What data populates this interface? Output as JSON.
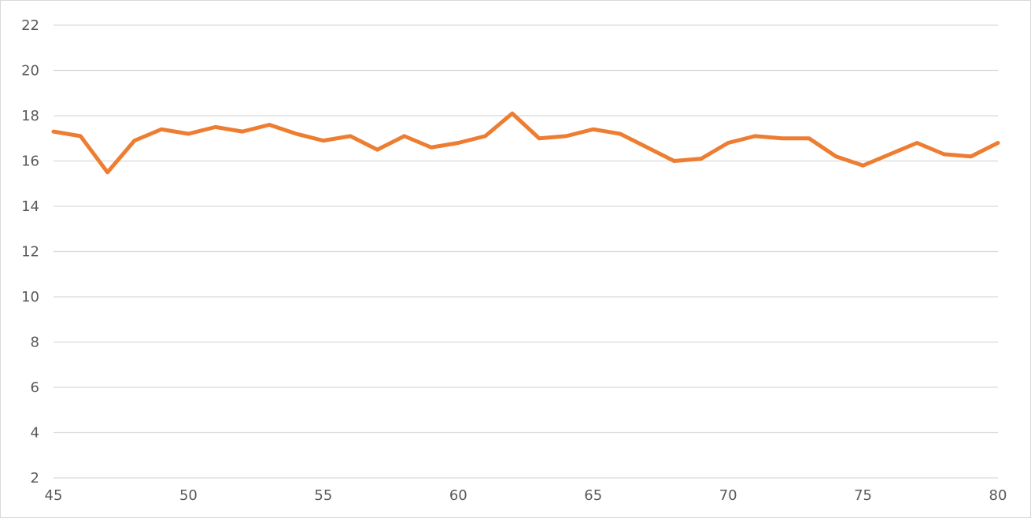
{
  "chart_data": {
    "type": "line",
    "title": "",
    "xlabel": "",
    "ylabel": "",
    "xlim": [
      45,
      80
    ],
    "ylim": [
      2,
      22
    ],
    "x_ticks": [
      45,
      50,
      55,
      60,
      65,
      70,
      75,
      80
    ],
    "y_ticks": [
      2,
      4,
      6,
      8,
      10,
      12,
      14,
      16,
      18,
      20,
      22
    ],
    "grid": "horizontal",
    "legend": "none",
    "series": [
      {
        "color": "#ED7D31",
        "x": [
          45,
          46,
          47,
          48,
          49,
          50,
          51,
          52,
          53,
          54,
          55,
          56,
          57,
          58,
          59,
          60,
          61,
          62,
          63,
          64,
          65,
          66,
          67,
          68,
          69,
          70,
          71,
          72,
          73,
          74,
          75,
          76,
          77,
          78,
          79,
          80
        ],
        "y": [
          17.3,
          17.1,
          15.5,
          16.9,
          17.4,
          17.2,
          17.5,
          17.3,
          17.6,
          17.2,
          16.9,
          17.1,
          16.5,
          17.1,
          16.6,
          16.8,
          17.1,
          18.1,
          17.0,
          17.1,
          17.4,
          17.2,
          16.6,
          16.0,
          16.1,
          16.8,
          17.1,
          17.0,
          17.0,
          16.2,
          15.8,
          16.3,
          16.8,
          16.3,
          16.2,
          16.8
        ]
      }
    ]
  }
}
